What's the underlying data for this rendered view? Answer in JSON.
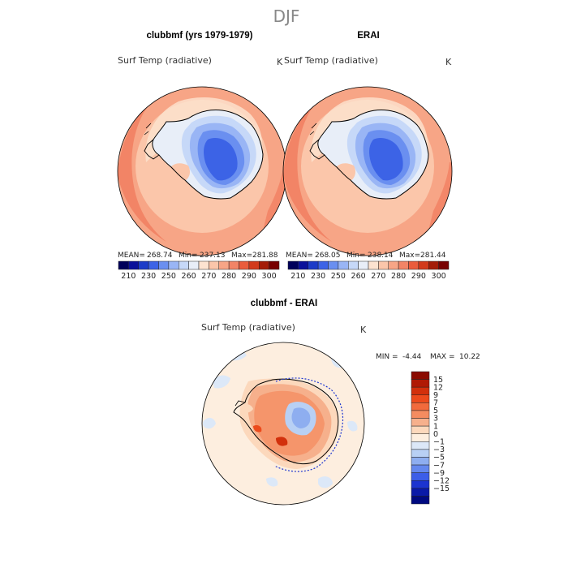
{
  "super_title": "DJF",
  "chart_data": [
    {
      "type": "heatmap",
      "id": "clubbmf",
      "title": "clubbmf (yrs 1979-1979)",
      "variable_label": "Surf Temp (radiative)",
      "units": "K",
      "projection": "south polar stereographic",
      "mean_label": "MEAN=",
      "mean_value": "268.74",
      "min_label": "Min=",
      "min_value": "237.13",
      "max_label": "Max=",
      "max_value": "281.88",
      "colorbar": {
        "orientation": "horizontal",
        "tick_labels": [
          "210",
          "230",
          "250",
          "260",
          "270",
          "280",
          "290",
          "300"
        ],
        "colors": [
          "#00005a",
          "#0a109a",
          "#1c3cc8",
          "#3c63e6",
          "#6a8ff0",
          "#99b5f5",
          "#c6d8f8",
          "#e8eef8",
          "#fde3d0",
          "#fbc6aa",
          "#f7a586",
          "#f28466",
          "#ea5c3c",
          "#d23a1c",
          "#a41c08",
          "#780000"
        ]
      }
    },
    {
      "type": "heatmap",
      "id": "erai",
      "title": "ERAI",
      "variable_label": "Surf Temp (radiative)",
      "units": "K",
      "projection": "south polar stereographic",
      "mean_label": "MEAN=",
      "mean_value": "268.05",
      "min_label": "Min=",
      "min_value": "238.14",
      "max_label": "Max=",
      "max_value": "281.44",
      "colorbar": {
        "orientation": "horizontal",
        "tick_labels": [
          "210",
          "230",
          "250",
          "260",
          "270",
          "280",
          "290",
          "300"
        ],
        "colors": [
          "#00005a",
          "#0a109a",
          "#1c3cc8",
          "#3c63e6",
          "#6a8ff0",
          "#99b5f5",
          "#c6d8f8",
          "#e8eef8",
          "#fde3d0",
          "#fbc6aa",
          "#f7a586",
          "#f28466",
          "#ea5c3c",
          "#d23a1c",
          "#a41c08",
          "#780000"
        ]
      }
    },
    {
      "type": "heatmap",
      "id": "difference",
      "title": "clubbmf - ERAI",
      "variable_label": "Surf Temp (radiative)",
      "units": "K",
      "projection": "south polar stereographic",
      "min_label": "MIN =",
      "min_value": "-4.44",
      "max_label": "MAX =",
      "max_value": "10.22",
      "colorbar": {
        "orientation": "vertical",
        "tick_labels": [
          "15",
          "12",
          "9",
          "7",
          "5",
          "3",
          "1",
          "0",
          "−1",
          "−3",
          "−5",
          "−7",
          "−9",
          "−12",
          "−15"
        ],
        "colors": [
          "#8b0a00",
          "#b01a05",
          "#d2300c",
          "#ec4a1c",
          "#f26a3c",
          "#f48c60",
          "#f6b08c",
          "#fcd8bc",
          "#fdeedf",
          "#dce8f8",
          "#b8d0f4",
          "#8eaef0",
          "#6488ee",
          "#3c5ee8",
          "#1c34d0",
          "#0a1aa8",
          "#000a80"
        ]
      }
    }
  ]
}
